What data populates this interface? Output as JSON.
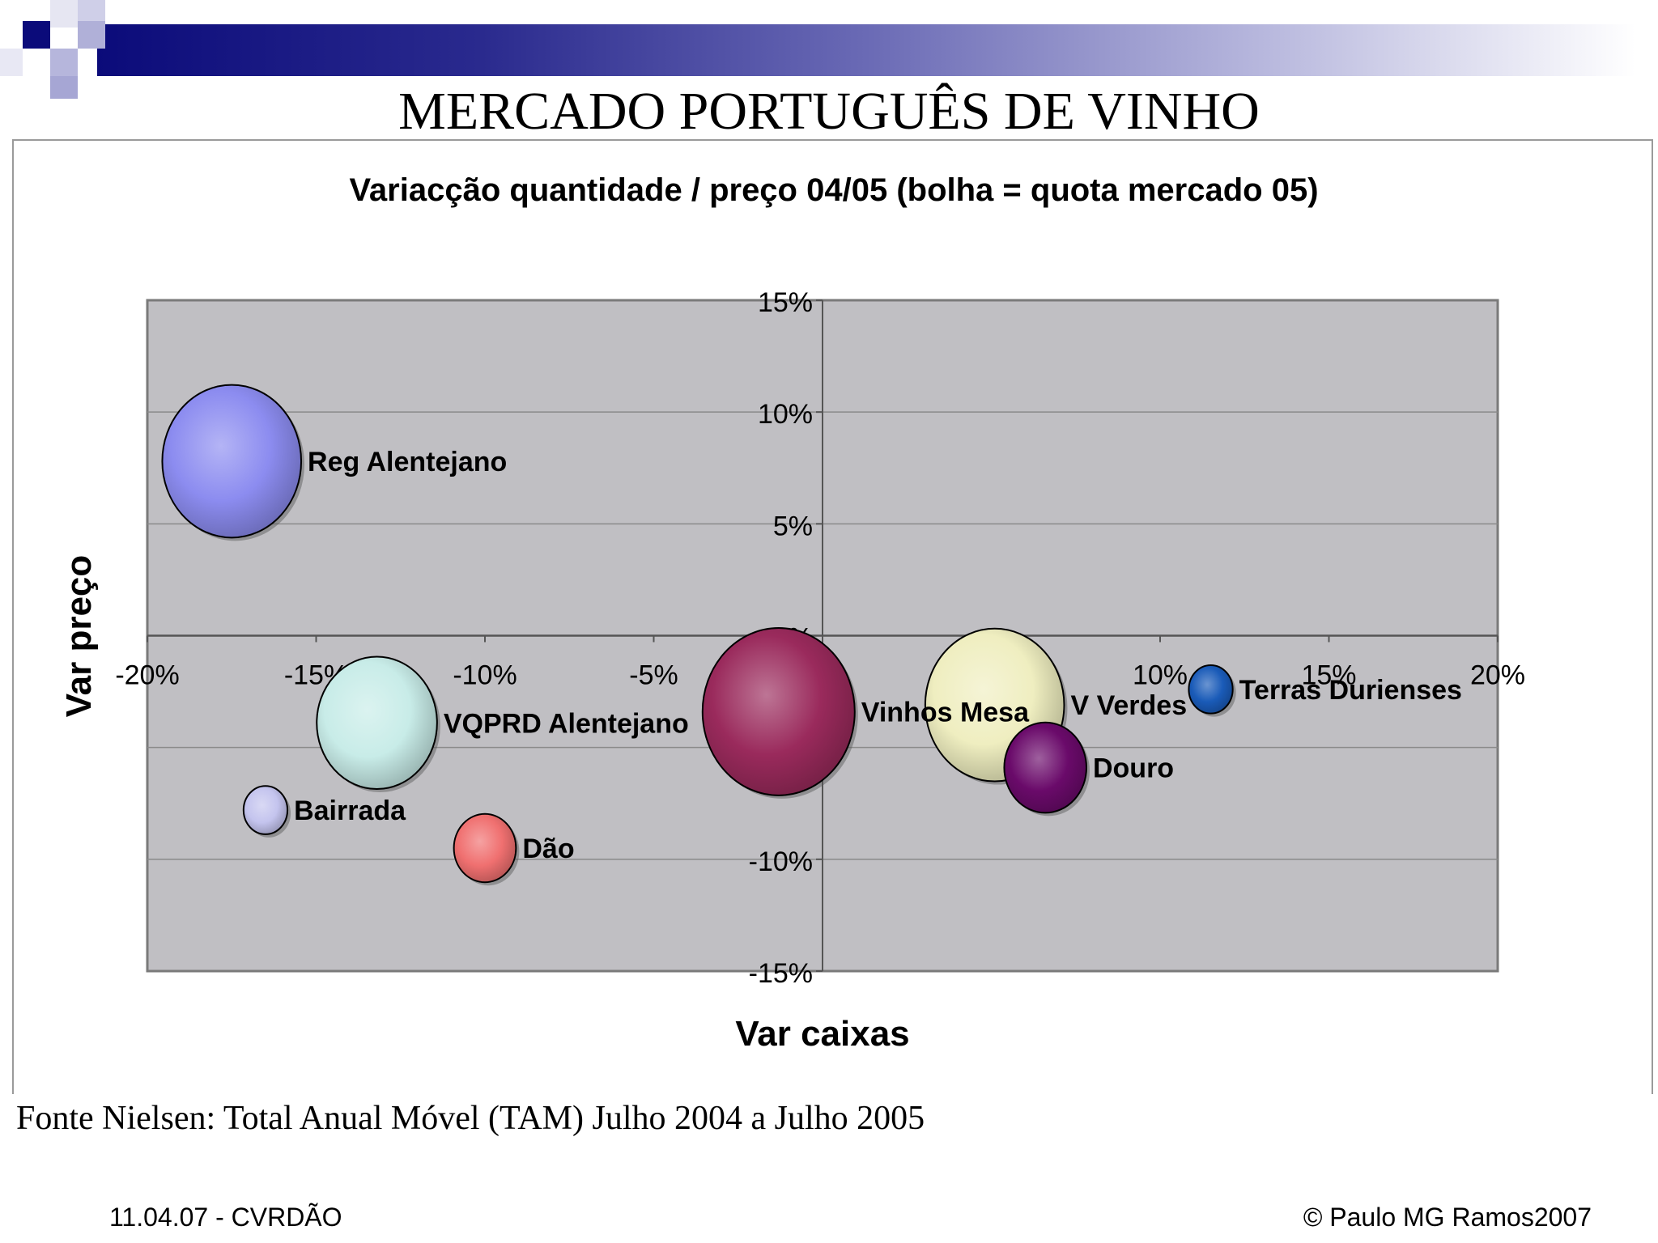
{
  "slide": {
    "title": "MERCADO PORTUGUÊS DE VINHO",
    "source_note": "Fonte Nielsen: Total Anual Móvel (TAM) Julho 2004 a Julho 2005",
    "footer_left": "11.04.07 - CVRDÃO",
    "footer_right": "© Paulo MG Ramos2007",
    "accent_color": "#0b0b7a"
  },
  "chart_data": {
    "type": "bubble",
    "title": "Variacção quantidade / preço 04/05 (bolha = quota mercado 05)",
    "xlabel": "Var caixas",
    "ylabel": "Var preço",
    "xlim": [
      -0.2,
      0.2
    ],
    "ylim": [
      -0.15,
      0.15
    ],
    "x_ticks": [
      "-20%",
      "-15%",
      "-10%",
      "-5%",
      "0%",
      "5%",
      "10%",
      "15%",
      "20%"
    ],
    "y_ticks": [
      "15%",
      "10%",
      "5%",
      "0%",
      "-5%",
      "-10%",
      "-15%"
    ],
    "grid": true,
    "plot_background": "#c0bfc3",
    "series": [
      {
        "name": "Reg Alentejano",
        "x": -0.175,
        "y": 0.078,
        "size": 0.1,
        "color": "#8c8cf0"
      },
      {
        "name": "VQPRD Alentejano",
        "x": -0.132,
        "y": -0.039,
        "size": 0.075,
        "color": "#c8ece8"
      },
      {
        "name": "Bairrada",
        "x": -0.165,
        "y": -0.078,
        "size": 0.01,
        "color": "#c4c4ee"
      },
      {
        "name": "Dão",
        "x": -0.1,
        "y": -0.095,
        "size": 0.02,
        "color": "#f07070"
      },
      {
        "name": "Vinhos Mesa",
        "x": -0.013,
        "y": -0.034,
        "size": 0.12,
        "color": "#9a2a5c"
      },
      {
        "name": "V Verdes",
        "x": 0.051,
        "y": -0.031,
        "size": 0.1,
        "color": "#efeec0"
      },
      {
        "name": "Douro",
        "x": 0.066,
        "y": -0.059,
        "size": 0.035,
        "color": "#6a0a6a"
      },
      {
        "name": "Terras Durienses",
        "x": 0.115,
        "y": -0.024,
        "size": 0.01,
        "color": "#1a5bb8"
      }
    ]
  }
}
